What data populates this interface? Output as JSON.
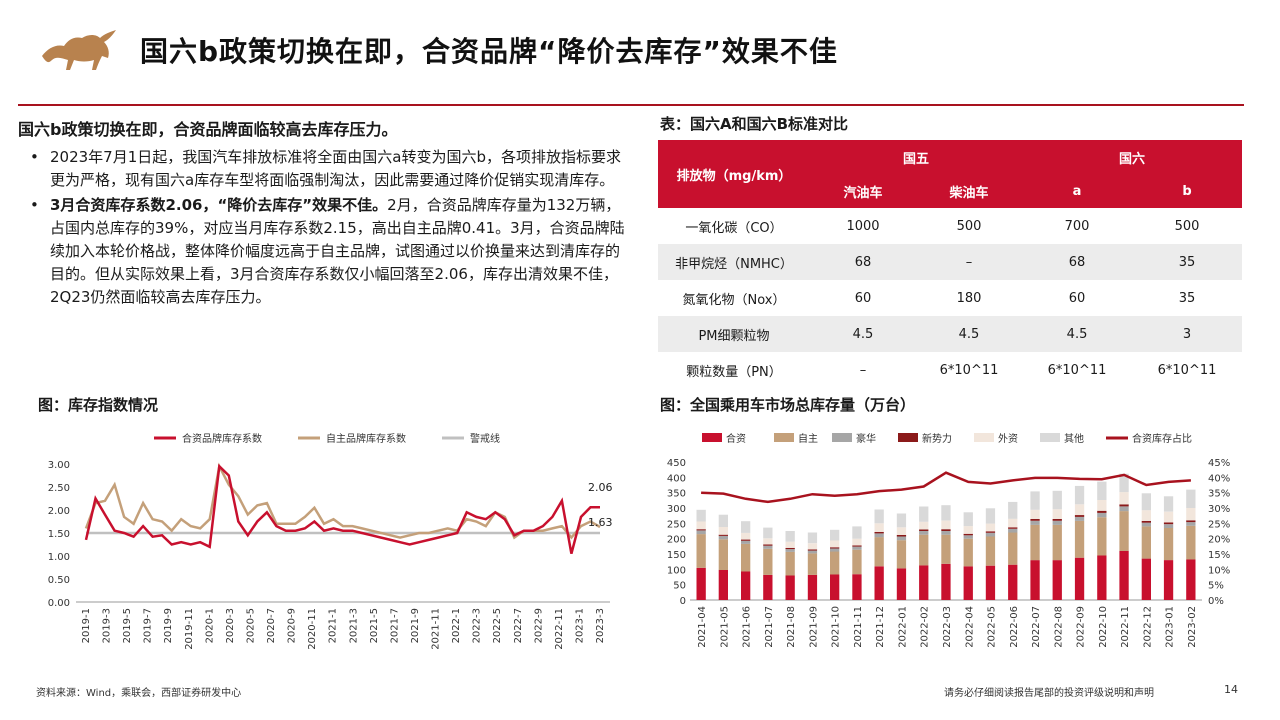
{
  "page": {
    "title": "国六b政策切换在即，合资品牌“降价去库存”效果不佳",
    "left_heading": "国六b政策切换在即，合资品牌面临较高去库存压力。",
    "bullets": [
      {
        "strong": "",
        "text": "2023年7月1日起，我国汽车排放标准将全面由国六a转变为国六b，各项排放指标要求更为严格，现有国六a库存车型将面临强制淘汰，因此需要通过降价促销实现清库存。"
      },
      {
        "strong": "3月合资库存系数2.06，“降价去库存”效果不佳。",
        "text": "2月，合资品牌库存量为132万辆，占国内总库存的39%，对应当月库存系数2.15，高出自主品牌0.41。3月，合资品牌陆续加入本轮价格战，整体降价幅度远高于自主品牌，试图通过以价换量来达到清库存的目的。但从实际效果上看，3月合资库存系数仅小幅回落至2.06，库存出清效果不佳，2Q23仍然面临较高去库存压力。"
      }
    ],
    "table_title": "表：国六A和国六B标准对比",
    "chart1_title": "图：库存指数情况",
    "chart2_title": "图：全国乘用车市场总库存量（万台）",
    "source": "资料来源：Wind，乘联会，西部证券研发中心",
    "disclaimer": "请务必仔细阅读报告尾部的投资评级说明和声明",
    "page_number": "14"
  },
  "table": {
    "h_pollutant": "排放物（mg/km）",
    "h_guo5": "国五",
    "h_guo6": "国六",
    "h_gasoline": "汽油车",
    "h_diesel": "柴油车",
    "h_a": "a",
    "h_b": "b",
    "rows": [
      [
        "一氧化碳（CO）",
        "1000",
        "500",
        "700",
        "500"
      ],
      [
        "非甲烷烃（NMHC）",
        "68",
        "–",
        "68",
        "35"
      ],
      [
        "氮氧化物（Nox）",
        "60",
        "180",
        "60",
        "35"
      ],
      [
        "PM细颗粒物",
        "4.5",
        "4.5",
        "4.5",
        "3"
      ],
      [
        "颗粒数量（PN）",
        "–",
        "6*10^11",
        "6*10^11",
        "6*10^11"
      ]
    ]
  },
  "chart_data": [
    {
      "type": "line",
      "x_ticks": [
        "2019-1",
        "2019-3",
        "2019-5",
        "2019-7",
        "2019-9",
        "2019-11",
        "2020-1",
        "2020-3",
        "2020-5",
        "2020-7",
        "2020-9",
        "2020-11",
        "2021-1",
        "2021-3",
        "2021-5",
        "2021-7",
        "2021-9",
        "2021-11",
        "2022-1",
        "2022-3",
        "2022-5",
        "2022-7",
        "2022-9",
        "2022-11",
        "2023-1",
        "2023-3"
      ],
      "ylim": [
        0,
        3
      ],
      "y_ticks": [
        "0.00",
        "0.50",
        "1.00",
        "1.50",
        "2.00",
        "2.50",
        "3.00"
      ],
      "colors": {
        "jv": "#c8102e",
        "own": "#c4a07a",
        "warn": "#c0c0c0"
      },
      "series": [
        {
          "name": "合资品牌库存系数",
          "values": [
            1.35,
            2.25,
            1.9,
            1.55,
            1.5,
            1.42,
            1.65,
            1.42,
            1.45,
            1.25,
            1.3,
            1.25,
            1.3,
            1.2,
            2.95,
            2.75,
            1.75,
            1.45,
            1.75,
            1.95,
            1.65,
            1.55,
            1.55,
            1.6,
            1.75,
            1.55,
            1.6,
            1.55,
            1.55,
            1.5,
            1.45,
            1.4,
            1.35,
            1.3,
            1.25,
            1.3,
            1.35,
            1.4,
            1.45,
            1.5,
            1.95,
            1.85,
            1.8,
            1.95,
            1.8,
            1.45,
            1.55,
            1.55,
            1.65,
            1.85,
            2.2,
            1.05,
            1.85,
            2.06,
            2.06
          ]
        },
        {
          "name": "自主品牌库存系数",
          "values": [
            1.6,
            2.15,
            2.2,
            2.55,
            1.85,
            1.7,
            2.15,
            1.8,
            1.75,
            1.55,
            1.8,
            1.65,
            1.6,
            1.8,
            2.95,
            2.55,
            2.3,
            1.9,
            2.1,
            2.15,
            1.7,
            1.7,
            1.7,
            1.85,
            2.05,
            1.7,
            1.8,
            1.65,
            1.65,
            1.6,
            1.55,
            1.5,
            1.45,
            1.4,
            1.45,
            1.5,
            1.5,
            1.55,
            1.6,
            1.55,
            1.8,
            1.75,
            1.65,
            1.95,
            1.85,
            1.4,
            1.55,
            1.55,
            1.55,
            1.6,
            1.65,
            1.4,
            1.65,
            1.75,
            1.63
          ]
        },
        {
          "name": "警戒线",
          "values": [
            1.5,
            1.5
          ]
        }
      ],
      "labels": {
        "jv_last": "2.06",
        "own_last": "1.63"
      }
    },
    {
      "type": "bar",
      "categories": [
        "2021-04",
        "2021-05",
        "2021-06",
        "2021-07",
        "2021-08",
        "2021-09",
        "2021-10",
        "2021-11",
        "2021-12",
        "2022-01",
        "2022-02",
        "2022-03",
        "2022-04",
        "2022-05",
        "2022-06",
        "2022-07",
        "2022-08",
        "2022-09",
        "2022-10",
        "2022-11",
        "2022-12",
        "2023-01",
        "2023-02"
      ],
      "ylim": [
        0,
        450
      ],
      "y2lim": [
        0,
        0.45
      ],
      "y_ticks": [
        "0",
        "50",
        "100",
        "150",
        "200",
        "250",
        "300",
        "350",
        "400",
        "450"
      ],
      "y2_ticks": [
        "0%",
        "5%",
        "10%",
        "15%",
        "20%",
        "25%",
        "30%",
        "35%",
        "40%",
        "45%"
      ],
      "colors": {
        "合资": "#c8102e",
        "自主": "#c4a07a",
        "豪华": "#a6a6a6",
        "新势力": "#8b1a1a",
        "外资": "#f2e6dc",
        "其他": "#d9d9d9",
        "合资库存占比": "#a8121e"
      },
      "series": [
        {
          "name": "合资",
          "values": [
            105,
            98,
            93,
            82,
            80,
            82,
            83,
            84,
            110,
            103,
            113,
            118,
            110,
            112,
            115,
            130,
            130,
            138,
            145,
            160,
            135,
            130,
            132
          ]
        },
        {
          "name": "自主",
          "values": [
            110,
            100,
            90,
            85,
            77,
            70,
            75,
            80,
            95,
            92,
            100,
            95,
            90,
            95,
            105,
            115,
            115,
            120,
            125,
            130,
            105,
            105,
            110
          ]
        },
        {
          "name": "豪华",
          "values": [
            12,
            11,
            10,
            10,
            9,
            9,
            10,
            10,
            12,
            12,
            12,
            12,
            11,
            12,
            12,
            13,
            13,
            13,
            14,
            15,
            12,
            12,
            12
          ]
        },
        {
          "name": "新势力",
          "values": [
            4,
            4,
            4,
            4,
            4,
            4,
            4,
            4,
            5,
            5,
            5,
            6,
            5,
            5,
            5,
            6,
            6,
            6,
            7,
            7,
            6,
            6,
            6
          ]
        },
        {
          "name": "外资",
          "values": [
            25,
            25,
            22,
            20,
            20,
            20,
            22,
            22,
            28,
            25,
            25,
            28,
            25,
            25,
            28,
            30,
            32,
            35,
            35,
            40,
            35,
            35,
            40
          ]
        },
        {
          "name": "其他",
          "values": [
            38,
            40,
            38,
            35,
            35,
            35,
            35,
            40,
            45,
            45,
            50,
            50,
            45,
            50,
            55,
            60,
            60,
            60,
            60,
            60,
            55,
            50,
            60
          ]
        },
        {
          "name": "合资库存占比",
          "values": [
            0.35,
            0.347,
            0.33,
            0.32,
            0.33,
            0.345,
            0.34,
            0.345,
            0.355,
            0.36,
            0.37,
            0.415,
            0.385,
            0.38,
            0.39,
            0.398,
            0.398,
            0.395,
            0.394,
            0.408,
            0.375,
            0.385,
            0.39
          ]
        }
      ]
    }
  ]
}
